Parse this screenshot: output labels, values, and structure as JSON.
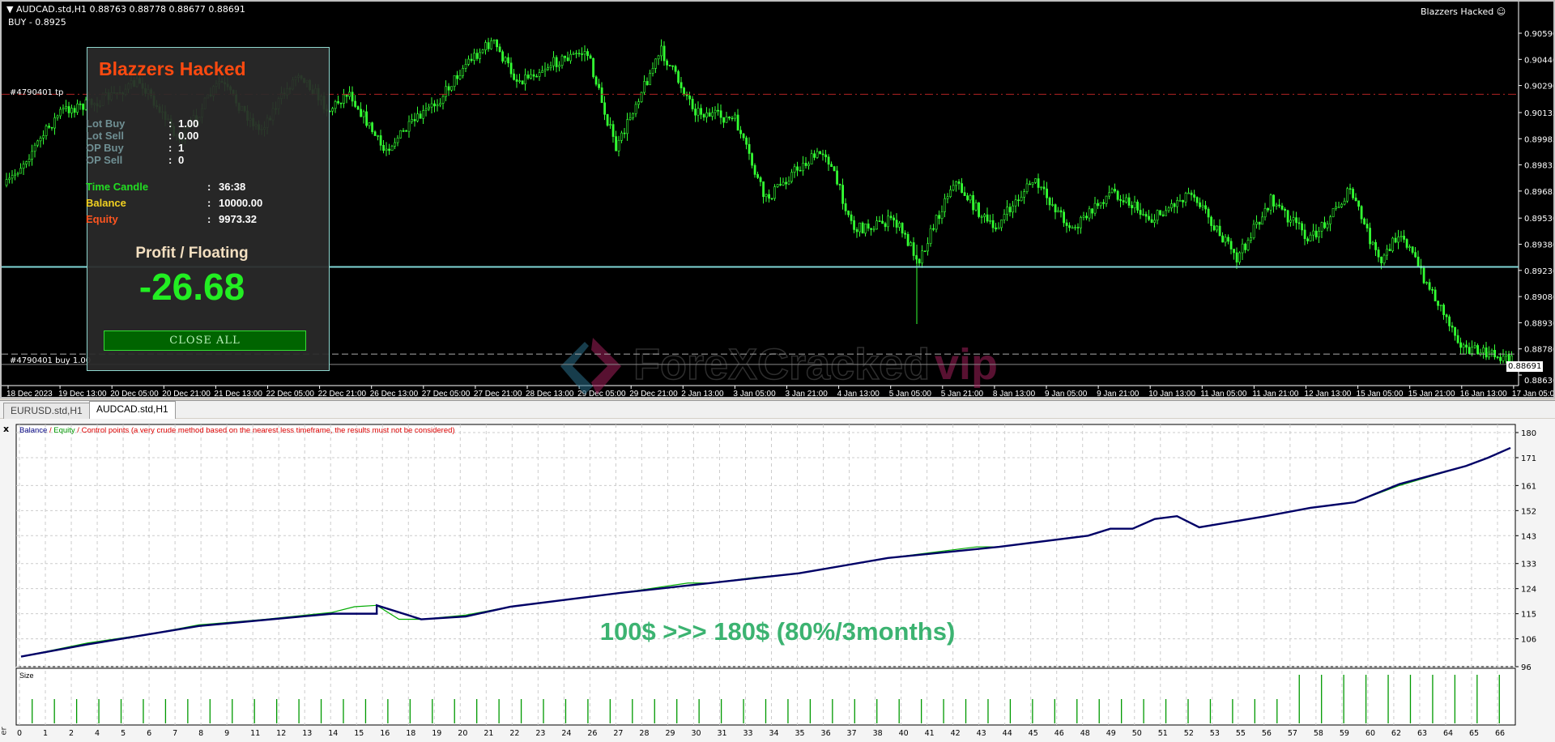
{
  "chart": {
    "symbol_line": "AUDCAD.std,H1  0.88763 0.88778 0.88677 0.88691",
    "buy_label": "BUY - 0.8925",
    "tp_label": "#4790401 tp",
    "buy_order_label": "#4790401 buy 1.00",
    "ea_name": "Blazzers Hacked",
    "ea_icon": "smiley-face-icon",
    "current_price": "0.88691",
    "price_ticks": [
      "0.90590",
      "0.90440",
      "0.90290",
      "0.90135",
      "0.89985",
      "0.89835",
      "0.89685",
      "0.89530",
      "0.89380",
      "0.89230",
      "0.89080",
      "0.88930",
      "0.88780",
      "0.88630"
    ],
    "time_ticks": [
      "18 Dec 2023",
      "19 Dec 13:00",
      "20 Dec 05:00",
      "20 Dec 21:00",
      "21 Dec 13:00",
      "22 Dec 05:00",
      "22 Dec 21:00",
      "26 Dec 13:00",
      "27 Dec 05:00",
      "27 Dec 21:00",
      "28 Dec 13:00",
      "29 Dec 05:00",
      "29 Dec 21:00",
      "2 Jan 13:00",
      "3 Jan 05:00",
      "3 Jan 21:00",
      "4 Jan 13:00",
      "5 Jan 05:00",
      "5 Jan 21:00",
      "8 Jan 13:00",
      "9 Jan 05:00",
      "9 Jan 21:00",
      "10 Jan 13:00",
      "11 Jan 05:00",
      "11 Jan 21:00",
      "12 Jan 13:00",
      "15 Jan 05:00",
      "15 Jan 21:00",
      "16 Jan 13:00",
      "17 Jan 05:00"
    ],
    "tp_price": 0.9024,
    "buy_price": 0.8925,
    "open_price": 0.8875,
    "colors": {
      "candle": "#33ff33",
      "tp_line": "#b22222",
      "buy_line": "#7fd6d6",
      "background": "#000000"
    },
    "watermark": {
      "text_main": "ForeXCracked",
      "text_accent": "vip"
    }
  },
  "panel": {
    "title": "Blazzers Hacked",
    "rows": [
      {
        "label": "Lot Buy",
        "value": "1.00"
      },
      {
        "label": "Lot Sell",
        "value": "0.00"
      },
      {
        "label": "OP Buy",
        "value": "1"
      },
      {
        "label": "OP Sell",
        "value": "0"
      }
    ],
    "stats": [
      {
        "label": "Time Candle",
        "value": "36:38",
        "color": "#22dd22"
      },
      {
        "label": "Balance",
        "value": "10000.00",
        "color": "#f0d020"
      },
      {
        "label": "Equity",
        "value": "9973.32",
        "color": "#ff5520"
      }
    ],
    "profit_label": "Profit / Floating",
    "profit_value": "-26.68",
    "close_all": "CLOSE ALL"
  },
  "tabs": [
    {
      "label": "EURUSD.std,H1",
      "active": false
    },
    {
      "label": "AUDCAD.std,H1",
      "active": true
    }
  ],
  "tester": {
    "close_glyph": "x",
    "side_label": "er",
    "legend": {
      "balance": "Balance",
      "sep1": " / ",
      "equity": "Equity",
      "sep2": " / ",
      "control": "Control points (a very crude method based on the nearest less timeframe, the results must not be considered)"
    },
    "promo": "100$ >>> 180$ (80%/3months)",
    "size_label": "Size"
  },
  "chart_data": {
    "type": "line",
    "ylim": [
      96,
      180
    ],
    "xlim": [
      0,
      67
    ],
    "grid": true,
    "y_ticks": [
      "180",
      "171",
      "161",
      "152",
      "143",
      "133",
      "124",
      "115",
      "106",
      "96"
    ],
    "x_ticks": [
      "0",
      "1",
      "2",
      "4",
      "5",
      "6",
      "7",
      "8",
      "9",
      "11",
      "12",
      "13",
      "14",
      "15",
      "16",
      "18",
      "19",
      "20",
      "21",
      "22",
      "23",
      "24",
      "26",
      "27",
      "28",
      "29",
      "30",
      "31",
      "33",
      "34",
      "35",
      "36",
      "37",
      "38",
      "40",
      "41",
      "42",
      "43",
      "44",
      "45",
      "46",
      "48",
      "49",
      "50",
      "51",
      "52",
      "53",
      "55",
      "56",
      "57",
      "58",
      "59",
      "60",
      "62",
      "63",
      "64",
      "65",
      "66"
    ],
    "series": [
      {
        "name": "Balance",
        "color": "#000066",
        "points": [
          [
            0,
            99.6
          ],
          [
            3,
            104
          ],
          [
            8,
            110.6
          ],
          [
            14,
            115
          ],
          [
            16,
            115
          ],
          [
            16,
            118
          ],
          [
            18,
            113
          ],
          [
            20,
            114
          ],
          [
            22,
            117.5
          ],
          [
            27,
            122.5
          ],
          [
            31,
            126
          ],
          [
            35,
            129.5
          ],
          [
            39,
            135
          ],
          [
            44,
            139
          ],
          [
            48,
            143
          ],
          [
            49,
            145.5
          ],
          [
            50,
            145.5
          ],
          [
            51,
            149
          ],
          [
            52,
            150
          ],
          [
            53,
            146
          ],
          [
            56,
            150
          ],
          [
            58,
            153
          ],
          [
            60,
            155
          ],
          [
            62,
            161.5
          ],
          [
            65,
            168
          ],
          [
            66,
            171
          ],
          [
            67,
            174.5
          ]
        ]
      },
      {
        "name": "Equity",
        "color": "#00aa00",
        "points": [
          [
            0,
            99.6
          ],
          [
            3,
            104.5
          ],
          [
            6,
            108
          ],
          [
            8,
            111
          ],
          [
            11,
            113
          ],
          [
            14,
            115.5
          ],
          [
            15,
            117.5
          ],
          [
            16,
            118
          ],
          [
            17,
            113
          ],
          [
            18,
            113
          ],
          [
            20,
            114.5
          ],
          [
            22,
            117.5
          ],
          [
            27,
            122.5
          ],
          [
            30,
            126
          ],
          [
            31,
            126
          ],
          [
            33,
            128
          ],
          [
            35,
            129.5
          ],
          [
            36,
            131
          ],
          [
            39,
            135
          ],
          [
            43,
            139
          ],
          [
            44,
            139
          ],
          [
            48,
            143
          ],
          [
            49,
            145.5
          ],
          [
            50,
            145.5
          ],
          [
            51,
            149
          ],
          [
            52,
            150
          ],
          [
            53,
            146
          ],
          [
            56,
            150
          ],
          [
            58,
            153
          ],
          [
            60,
            155
          ],
          [
            62,
            161
          ],
          [
            65,
            168
          ],
          [
            66,
            171
          ],
          [
            67,
            174.5
          ]
        ]
      }
    ],
    "size": {
      "label": "Size",
      "small_range": [
        1,
        57
      ],
      "small_value": 1,
      "large_range": [
        58,
        67
      ],
      "large_value": 2,
      "color": "#009900"
    }
  }
}
